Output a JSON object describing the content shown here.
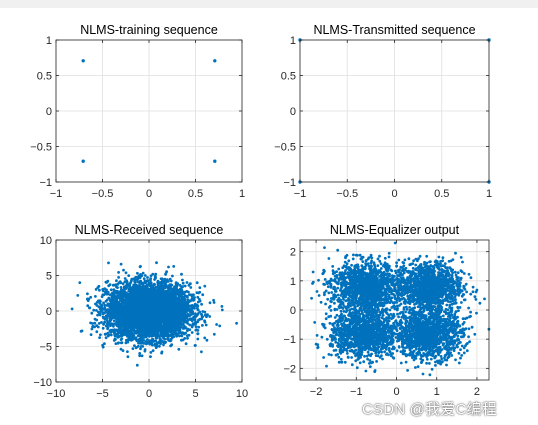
{
  "figure": {
    "background": "#ffffff",
    "topband": "#f0f0f0"
  },
  "watermark": "CSDN @我爱C编程",
  "colors": {
    "marker": "#0072bd",
    "grid": "#dfdfdf",
    "axis": "#262626"
  },
  "chart_data": [
    {
      "type": "scatter",
      "title": "NLMS-training sequence",
      "xlim": [
        -1,
        1
      ],
      "ylim": [
        -1,
        1
      ],
      "xticks": [
        -1,
        -0.5,
        0,
        0.5,
        1
      ],
      "yticks": [
        -1,
        -0.5,
        0,
        0.5,
        1
      ],
      "grid": true,
      "points": [
        [
          -0.707,
          0.707
        ],
        [
          0.707,
          0.707
        ],
        [
          -0.707,
          -0.707
        ],
        [
          0.707,
          -0.707
        ]
      ]
    },
    {
      "type": "scatter",
      "title": "NLMS-Transmitted sequence",
      "xlim": [
        -1,
        1
      ],
      "ylim": [
        -1,
        1
      ],
      "xticks": [
        -1,
        -0.5,
        0,
        0.5,
        1
      ],
      "yticks": [
        -1,
        -0.5,
        0,
        0.5,
        1
      ],
      "grid": true,
      "points": [
        [
          -1,
          1
        ],
        [
          1,
          1
        ],
        [
          -1,
          -1
        ],
        [
          1,
          -1
        ]
      ]
    },
    {
      "type": "scatter",
      "title": "NLMS-Received sequence",
      "xlim": [
        -10,
        10
      ],
      "ylim": [
        -10,
        10
      ],
      "xticks": [
        -10,
        -5,
        0,
        5,
        10
      ],
      "yticks": [
        -10,
        -5,
        0,
        5,
        10
      ],
      "grid": true,
      "cloud": {
        "center": [
          0,
          0
        ],
        "spread_x": 2.2,
        "spread_y": 1.9,
        "approx_count": 5000
      },
      "outliers": [
        [
          -7.2,
          -2.8
        ],
        [
          7.6,
          -2.1
        ],
        [
          -6.6,
          1.7
        ],
        [
          7.0,
          1.2
        ],
        [
          -5.5,
          3.3
        ],
        [
          6.0,
          3.5
        ],
        [
          -4.8,
          -4.6
        ],
        [
          3.2,
          -5.4
        ],
        [
          -3.0,
          6.6
        ],
        [
          2.1,
          6.2
        ],
        [
          -1.0,
          -6.3
        ]
      ]
    },
    {
      "type": "scatter",
      "title": "NLMS-Equalizer output",
      "xlim": [
        -2.4,
        2.3
      ],
      "ylim": [
        -2.4,
        2.4
      ],
      "xticks": [
        -2,
        -1,
        0,
        1,
        2
      ],
      "yticks": [
        -2,
        -1,
        0,
        1,
        2
      ],
      "grid": true,
      "clusters": [
        [
          -0.8,
          0.8
        ],
        [
          0.8,
          0.8
        ],
        [
          -0.8,
          -0.8
        ],
        [
          0.8,
          -0.8
        ]
      ],
      "cluster_spread": 0.42,
      "approx_count": 5000
    }
  ]
}
